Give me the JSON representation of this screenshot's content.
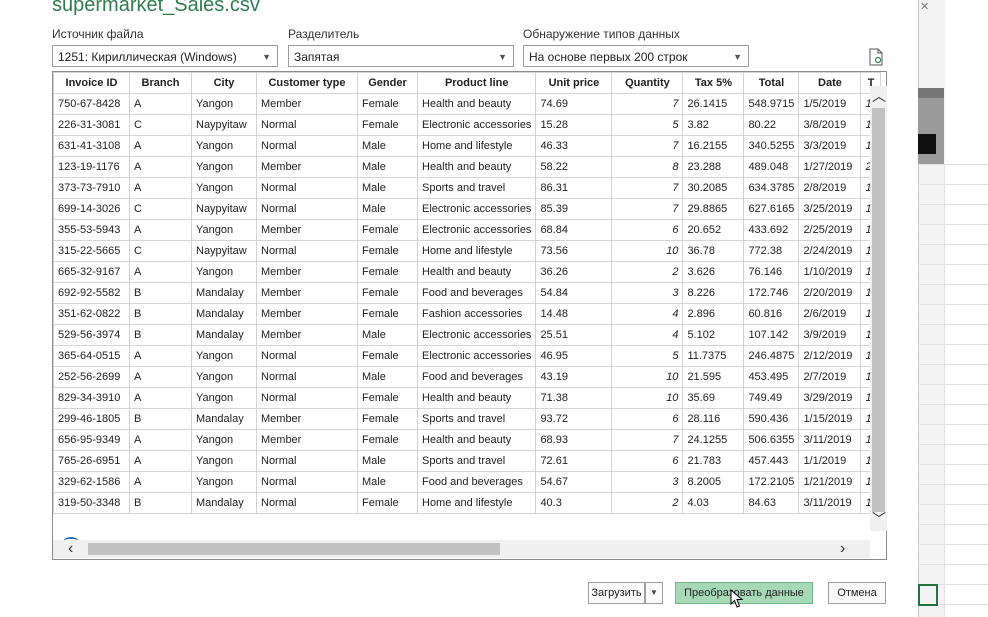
{
  "dialog": {
    "title": "supermarket_Sales.csv",
    "file_origin": {
      "label": "Источник файла",
      "value": "1251: Кириллическая (Windows)"
    },
    "delimiter": {
      "label": "Разделитель",
      "value": "Запятая"
    },
    "type_detection": {
      "label": "Обнаружение типов данных",
      "value": "На основе первых 200 строк"
    }
  },
  "table": {
    "columns": [
      "Invoice ID",
      "Branch",
      "City",
      "Customer type",
      "Gender",
      "Product line",
      "Unit price",
      "Quantity",
      "Tax 5%",
      "Total",
      "Date",
      "T"
    ],
    "rows": [
      [
        "750-67-8428",
        "A",
        "Yangon",
        "Member",
        "Female",
        "Health and beauty",
        "74.69",
        "7",
        "26.1415",
        "548.9715",
        "1/5/2019",
        "1"
      ],
      [
        "226-31-3081",
        "C",
        "Naypyitaw",
        "Normal",
        "Female",
        "Electronic accessories",
        "15.28",
        "5",
        "3.82",
        "80.22",
        "3/8/2019",
        "1"
      ],
      [
        "631-41-3108",
        "A",
        "Yangon",
        "Normal",
        "Male",
        "Home and lifestyle",
        "46.33",
        "7",
        "16.2155",
        "340.5255",
        "3/3/2019",
        "1"
      ],
      [
        "123-19-1176",
        "A",
        "Yangon",
        "Member",
        "Male",
        "Health and beauty",
        "58.22",
        "8",
        "23.288",
        "489.048",
        "1/27/2019",
        "2"
      ],
      [
        "373-73-7910",
        "A",
        "Yangon",
        "Normal",
        "Male",
        "Sports and travel",
        "86.31",
        "7",
        "30.2085",
        "634.3785",
        "2/8/2019",
        "1"
      ],
      [
        "699-14-3026",
        "C",
        "Naypyitaw",
        "Normal",
        "Male",
        "Electronic accessories",
        "85.39",
        "7",
        "29.8865",
        "627.6165",
        "3/25/2019",
        "1"
      ],
      [
        "355-53-5943",
        "A",
        "Yangon",
        "Member",
        "Female",
        "Electronic accessories",
        "68.84",
        "6",
        "20.652",
        "433.692",
        "2/25/2019",
        "1"
      ],
      [
        "315-22-5665",
        "C",
        "Naypyitaw",
        "Normal",
        "Female",
        "Home and lifestyle",
        "73.56",
        "10",
        "36.78",
        "772.38",
        "2/24/2019",
        "1"
      ],
      [
        "665-32-9167",
        "A",
        "Yangon",
        "Member",
        "Female",
        "Health and beauty",
        "36.26",
        "2",
        "3.626",
        "76.146",
        "1/10/2019",
        "1"
      ],
      [
        "692-92-5582",
        "B",
        "Mandalay",
        "Member",
        "Female",
        "Food and beverages",
        "54.84",
        "3",
        "8.226",
        "172.746",
        "2/20/2019",
        "1"
      ],
      [
        "351-62-0822",
        "B",
        "Mandalay",
        "Member",
        "Female",
        "Fashion accessories",
        "14.48",
        "4",
        "2.896",
        "60.816",
        "2/6/2019",
        "1"
      ],
      [
        "529-56-3974",
        "B",
        "Mandalay",
        "Member",
        "Male",
        "Electronic accessories",
        "25.51",
        "4",
        "5.102",
        "107.142",
        "3/9/2019",
        "1"
      ],
      [
        "365-64-0515",
        "A",
        "Yangon",
        "Normal",
        "Female",
        "Electronic accessories",
        "46.95",
        "5",
        "11.7375",
        "246.4875",
        "2/12/2019",
        "1"
      ],
      [
        "252-56-2699",
        "A",
        "Yangon",
        "Normal",
        "Male",
        "Food and beverages",
        "43.19",
        "10",
        "21.595",
        "453.495",
        "2/7/2019",
        "1"
      ],
      [
        "829-34-3910",
        "A",
        "Yangon",
        "Normal",
        "Female",
        "Health and beauty",
        "71.38",
        "10",
        "35.69",
        "749.49",
        "3/29/2019",
        "1"
      ],
      [
        "299-46-1805",
        "B",
        "Mandalay",
        "Member",
        "Female",
        "Sports and travel",
        "93.72",
        "6",
        "28.116",
        "590.436",
        "1/15/2019",
        "1"
      ],
      [
        "656-95-9349",
        "A",
        "Yangon",
        "Member",
        "Female",
        "Health and beauty",
        "68.93",
        "7",
        "24.1255",
        "506.6355",
        "3/11/2019",
        "1"
      ],
      [
        "765-26-6951",
        "A",
        "Yangon",
        "Normal",
        "Male",
        "Sports and travel",
        "72.61",
        "6",
        "21.783",
        "457.443",
        "1/1/2019",
        "1"
      ],
      [
        "329-62-1586",
        "A",
        "Yangon",
        "Normal",
        "Male",
        "Food and beverages",
        "54.67",
        "3",
        "8.2005",
        "172.2105",
        "1/21/2019",
        "1"
      ],
      [
        "319-50-3348",
        "B",
        "Mandalay",
        "Normal",
        "Female",
        "Home and lifestyle",
        "40.3",
        "2",
        "4.03",
        "84.63",
        "3/11/2019",
        "1"
      ]
    ]
  },
  "buttons": {
    "load": "Загрузить",
    "transform": "Преобразовать данные",
    "cancel": "Отмена"
  },
  "icons": {
    "caret": "chevron-down-icon",
    "scroll_up": "chevron-up-icon",
    "scroll_down": "chevron-down-icon",
    "scroll_left": "chevron-left-icon",
    "scroll_right": "chevron-right-icon",
    "document": "document-settings-icon"
  },
  "colors": {
    "title": "#2e7d4f",
    "primary_button": "#a8d9b7"
  }
}
